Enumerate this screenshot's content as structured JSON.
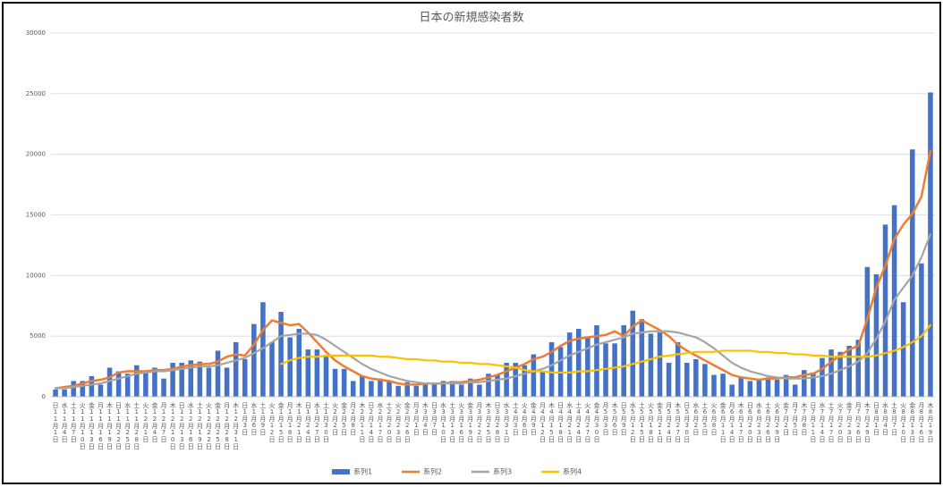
{
  "chart_data": {
    "type": "bar",
    "title": "日本の新規感染者数",
    "categories": [
      "日11月1日",
      "水11月4日",
      "土11月7日",
      "火11月10日",
      "金11月13日",
      "月11月16日",
      "木11月19日",
      "日11月22日",
      "水11月25日",
      "土11月28日",
      "火12月1日",
      "金12月4日",
      "月12月7日",
      "木12月10日",
      "日12月13日",
      "水12月16日",
      "土12月19日",
      "火12月22日",
      "金12月25日",
      "月12月28日",
      "木12月31日",
      "日1月3日",
      "水1月6日",
      "土1月9日",
      "火1月12日",
      "金1月15日",
      "月1月18日",
      "木1月21日",
      "日1月24日",
      "水1月27日",
      "土1月30日",
      "火2月2日",
      "金2月5日",
      "月2月8日",
      "木2月11日",
      "日2月14日",
      "水2月17日",
      "土2月20日",
      "火2月23日",
      "金2月26日",
      "月3月1日",
      "木3月4日",
      "日3月7日",
      "水3月10日",
      "土3月13日",
      "火3月16日",
      "金3月19日",
      "月3月22日",
      "木3月25日",
      "日3月28日",
      "水3月31日",
      "土4月3日",
      "火4月6日",
      "金4月9日",
      "月4月12日",
      "木4月15日",
      "日4月18日",
      "水4月21日",
      "土4月24日",
      "火4月27日",
      "金4月30日",
      "月5月3日",
      "木5月6日",
      "日5月9日",
      "水5月12日",
      "土5月15日",
      "火5月18日",
      "金5月21日",
      "月5月24日",
      "木5月27日",
      "日5月30日",
      "水6月2日",
      "土6月5日",
      "火6月8日",
      "金6月11日",
      "月6月14日",
      "木6月17日",
      "日6月20日",
      "水6月23日",
      "土6月26日",
      "火6月29日",
      "金7月2日",
      "月7月5日",
      "木7月8日",
      "日7月11日",
      "水7月14日",
      "土7月17日",
      "火7月20日",
      "金7月23日",
      "月7月26日",
      "木7月29日",
      "日8月1日",
      "水8月4日",
      "土8月7日",
      "火8月10日",
      "金8月13日",
      "月8月16日",
      "木8月19日"
    ],
    "series": [
      {
        "name": "系列1",
        "type": "bar",
        "color": "#4472c4",
        "values": [
          600,
          600,
          1300,
          1300,
          1700,
          1000,
          2400,
          2100,
          1900,
          2600,
          2000,
          2400,
          1500,
          2800,
          2800,
          3000,
          2900,
          2400,
          3800,
          2400,
          4500,
          3100,
          6000,
          7800,
          4500,
          7000,
          4900,
          5600,
          3900,
          3900,
          3300,
          2300,
          2300,
          1300,
          1700,
          1300,
          1500,
          1300,
          900,
          1200,
          900,
          1100,
          1100,
          1300,
          1300,
          1000,
          1500,
          1000,
          1900,
          1800,
          2800,
          2800,
          2600,
          3500,
          2100,
          4500,
          4100,
          5300,
          5600,
          4900,
          5900,
          4400,
          4400,
          5900,
          7100,
          6400,
          5200,
          5300,
          2800,
          4500,
          2800,
          3100,
          2700,
          1800,
          1900,
          1000,
          1600,
          1300,
          1500,
          1600,
          1400,
          1800,
          1000,
          2200,
          2000,
          3200,
          3900,
          3700,
          4200,
          4700,
          10700,
          10100,
          14200,
          15800,
          7800,
          20400,
          11000,
          25100
        ]
      },
      {
        "name": "系列2",
        "type": "line",
        "color": "#ed7d31",
        "values": [
          700,
          800,
          900,
          1100,
          1300,
          1400,
          1600,
          2000,
          2100,
          2100,
          2100,
          2200,
          2200,
          2300,
          2500,
          2600,
          2700,
          2700,
          2900,
          3300,
          3500,
          3400,
          4300,
          5500,
          6300,
          6100,
          5900,
          6000,
          5300,
          4500,
          3700,
          3000,
          2500,
          2100,
          1700,
          1500,
          1400,
          1300,
          1100,
          1000,
          1000,
          1100,
          1100,
          1100,
          1200,
          1200,
          1300,
          1400,
          1600,
          1800,
          2100,
          2400,
          2700,
          3100,
          3300,
          3700,
          4200,
          4600,
          4800,
          4900,
          5000,
          5100,
          5400,
          5000,
          5800,
          6300,
          5900,
          5500,
          5000,
          4300,
          3800,
          3400,
          3000,
          2600,
          2200,
          1800,
          1600,
          1500,
          1400,
          1500,
          1500,
          1600,
          1600,
          1800,
          1900,
          2300,
          2900,
          3400,
          3900,
          4200,
          6400,
          9000,
          10800,
          13000,
          14200,
          15100,
          16500,
          20300
        ]
      },
      {
        "name": "系列3",
        "type": "line",
        "color": "#a5a5a5",
        "values": [
          700,
          700,
          800,
          900,
          1000,
          1100,
          1300,
          1500,
          1700,
          1900,
          2000,
          2100,
          2100,
          2200,
          2300,
          2400,
          2500,
          2500,
          2600,
          2800,
          3000,
          3200,
          3600,
          4000,
          4500,
          5000,
          5100,
          5200,
          5200,
          5100,
          4700,
          4200,
          3700,
          3200,
          2700,
          2300,
          2000,
          1700,
          1500,
          1300,
          1200,
          1100,
          1100,
          1100,
          1100,
          1100,
          1200,
          1200,
          1300,
          1400,
          1500,
          1700,
          1900,
          2100,
          2300,
          2600,
          3000,
          3400,
          3700,
          4000,
          4300,
          4500,
          4700,
          4900,
          5200,
          5300,
          5400,
          5400,
          5400,
          5300,
          5100,
          4900,
          4500,
          4000,
          3400,
          2800,
          2400,
          2100,
          1900,
          1700,
          1600,
          1500,
          1500,
          1500,
          1600,
          1700,
          1900,
          2200,
          2500,
          2900,
          3600,
          4800,
          6200,
          8000,
          9000,
          10000,
          11500,
          13400
        ]
      },
      {
        "name": "系列4",
        "type": "line",
        "color": "#ffc000",
        "values": [
          null,
          null,
          null,
          null,
          null,
          null,
          null,
          null,
          null,
          null,
          null,
          null,
          null,
          null,
          null,
          null,
          null,
          null,
          null,
          null,
          null,
          null,
          null,
          null,
          null,
          2700,
          3000,
          3200,
          3300,
          3300,
          3400,
          3400,
          3400,
          3400,
          3400,
          3400,
          3300,
          3300,
          3200,
          3100,
          3100,
          3000,
          3000,
          2900,
          2900,
          2800,
          2800,
          2700,
          2700,
          2600,
          2500,
          2400,
          2200,
          2100,
          2100,
          2000,
          2000,
          2000,
          2100,
          2100,
          2200,
          2300,
          2400,
          2500,
          2700,
          2900,
          3100,
          3300,
          3400,
          3500,
          3600,
          3700,
          3700,
          3700,
          3800,
          3800,
          3800,
          3800,
          3700,
          3700,
          3600,
          3600,
          3500,
          3500,
          3400,
          3400,
          3300,
          3300,
          3300,
          3300,
          3300,
          3400,
          3600,
          3800,
          4100,
          4500,
          5000,
          5900
        ]
      }
    ],
    "ylim": [
      0,
      30000
    ],
    "yticks": [
      0,
      5000,
      10000,
      15000,
      20000,
      25000,
      30000
    ],
    "grid": true,
    "legend": "bottom"
  }
}
